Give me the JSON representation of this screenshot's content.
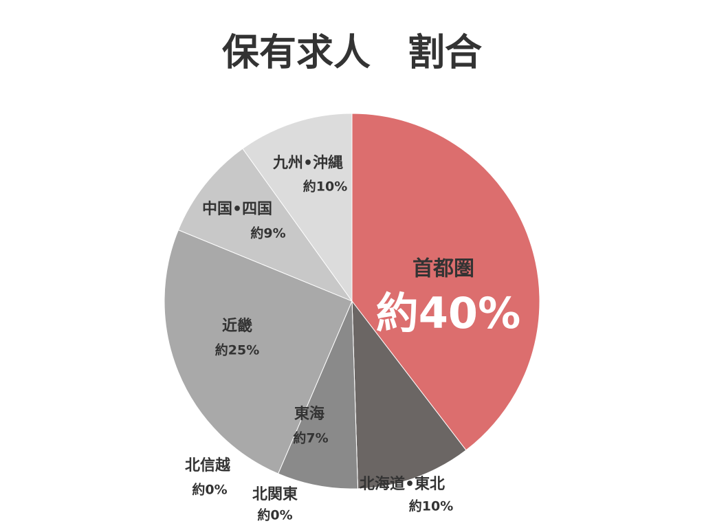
{
  "chart_data": {
    "type": "pie",
    "title": "保有求人　割合",
    "categories": [
      "首都圏",
      "北海道•東北",
      "北関東",
      "北信越",
      "東海",
      "近畿",
      "中国•四国",
      "九州•沖縄"
    ],
    "values": [
      40,
      10,
      0,
      0,
      7,
      25,
      9,
      10
    ],
    "value_labels": [
      "約40%",
      "約10%",
      "約0%",
      "約0%",
      "約7%",
      "約25%",
      "約9%",
      "約10%"
    ],
    "colors": [
      "#dc6e6e",
      "#6b6664",
      "#777777",
      "#7f7f7f",
      "#8a8a8a",
      "#a9a9a9",
      "#c8c8c8",
      "#dcdcdc"
    ]
  }
}
